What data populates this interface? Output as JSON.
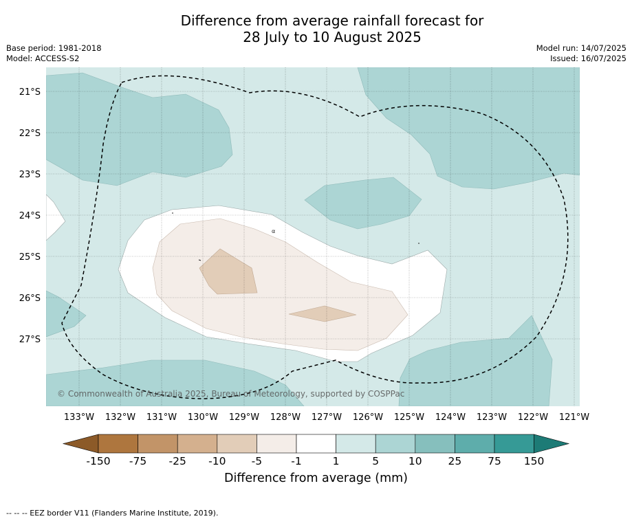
{
  "title": {
    "line1": "Difference from average rainfall forecast for",
    "line2": "28 July to 10 August 2025"
  },
  "meta_left": {
    "base_period": "Base period: 1981-2018",
    "model": "Model: ACCESS-S2"
  },
  "meta_right": {
    "model_run": "Model run: 14/07/2025",
    "issued": "Issued: 16/07/2025"
  },
  "map": {
    "lat_labels": [
      "21°S",
      "22°S",
      "23°S",
      "24°S",
      "25°S",
      "26°S",
      "27°S"
    ],
    "lon_labels": [
      "133°W",
      "132°W",
      "131°W",
      "130°W",
      "129°W",
      "128°W",
      "127°W",
      "126°W",
      "125°W",
      "124°W",
      "123°W",
      "122°W",
      "121°W"
    ],
    "copyright": "© Commonwealth of Australia 2025, Bureau of Meteorology, supported by COSPPac",
    "small_mark": "α",
    "colors": {
      "wet_1_5": "#d4e9e8",
      "wet_5_10": "#acd5d4",
      "neutral": "#ffffff",
      "dry_1_5": "#f4ede8",
      "dry_5_10": "#e2cdb8"
    }
  },
  "colorbar": {
    "ticks": [
      "-150",
      "-75",
      "-25",
      "-10",
      "-5",
      "-1",
      "1",
      "5",
      "10",
      "25",
      "75",
      "150"
    ],
    "colors": [
      "#ae763e",
      "#c29468",
      "#d4b08e",
      "#e2cdb8",
      "#f4ede8",
      "#ffffff",
      "#d4e9e8",
      "#acd5d4",
      "#86bfbd",
      "#5eadab",
      "#369a96"
    ],
    "under_color": "#8c5a28",
    "over_color": "#1d7b76",
    "title": "Difference from average (mm)"
  },
  "footnote": "--  --  -- EEZ border V11 (Flanders Marine Institute, 2019)."
}
